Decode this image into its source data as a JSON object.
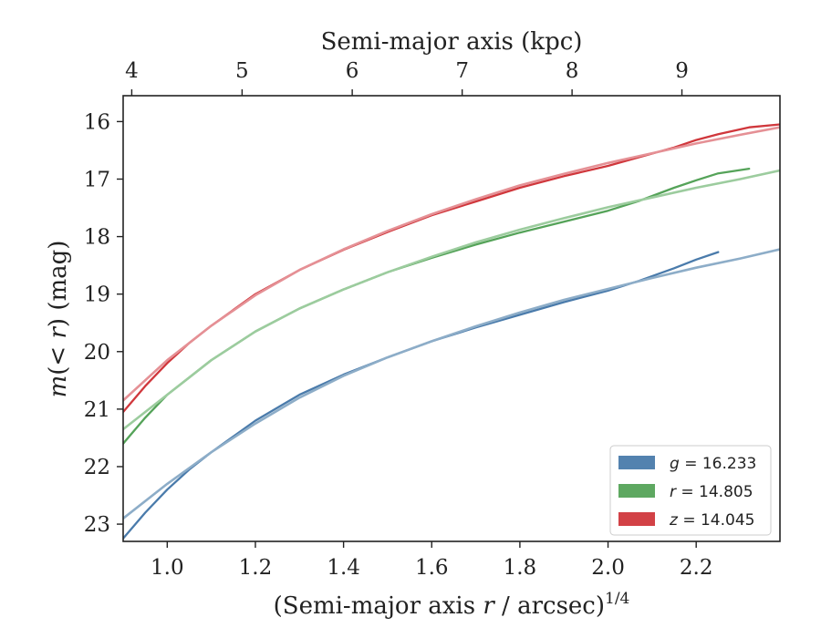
{
  "chart_data": {
    "type": "line",
    "xlabel": "(Semi-major axis r / arcsec)^1/4",
    "xlabel_parts": {
      "pre": "(Semi-major axis ",
      "var": "r",
      "post": " / arcsec)",
      "sup": "1/4"
    },
    "x2label": "Semi-major axis (kpc)",
    "ylabel": "m(< r) (mag)",
    "ylabel_parts": {
      "var": "m",
      "mid": "(< ",
      "var2": "r",
      "post": ") (mag)"
    },
    "xlim": [
      0.9,
      2.39
    ],
    "ylim": [
      23.3,
      15.55
    ],
    "y_inverted": true,
    "x_ticks": [
      1.0,
      1.2,
      1.4,
      1.6,
      1.8,
      2.0,
      2.2
    ],
    "x_tick_labels": [
      "1.0",
      "1.2",
      "1.4",
      "1.6",
      "1.8",
      "2.0",
      "2.2"
    ],
    "y_ticks": [
      16,
      17,
      18,
      19,
      20,
      21,
      22,
      23
    ],
    "y_tick_labels": [
      "16",
      "17",
      "18",
      "19",
      "20",
      "21",
      "22",
      "23"
    ],
    "x2_ticks": [
      {
        "label": "4",
        "x": 0.9195
      },
      {
        "label": "5",
        "x": 1.1698
      },
      {
        "label": "6",
        "x": 1.4197
      },
      {
        "label": "7",
        "x": 1.6691
      },
      {
        "label": "8",
        "x": 1.9184
      },
      {
        "label": "9",
        "x": 2.1676
      }
    ],
    "legend_position": "lower-right",
    "legend": [
      {
        "band": "g",
        "value": "16.233",
        "color": "#4a7bab"
      },
      {
        "band": "r",
        "value": "14.805",
        "color": "#55a359"
      },
      {
        "band": "z",
        "value": "14.045",
        "color": "#d0373c"
      }
    ],
    "series": [
      {
        "band": "g",
        "kind": "data",
        "color": "#4a7bab",
        "x": [
          0.9,
          0.95,
          1.0,
          1.05,
          1.1,
          1.2,
          1.3,
          1.4,
          1.5,
          1.6,
          1.7,
          1.8,
          1.9,
          2.0,
          2.07,
          2.15,
          2.2,
          2.25
        ],
        "y": [
          23.25,
          22.8,
          22.4,
          22.05,
          21.75,
          21.2,
          20.75,
          20.4,
          20.1,
          19.82,
          19.58,
          19.36,
          19.14,
          18.94,
          18.77,
          18.55,
          18.4,
          18.27
        ]
      },
      {
        "band": "g",
        "kind": "model",
        "color": "#8dadc8",
        "x": [
          0.9,
          1.0,
          1.1,
          1.2,
          1.3,
          1.4,
          1.5,
          1.6,
          1.7,
          1.8,
          1.9,
          2.0,
          2.1,
          2.2,
          2.3,
          2.39
        ],
        "y": [
          22.9,
          22.3,
          21.75,
          21.25,
          20.8,
          20.42,
          20.1,
          19.82,
          19.56,
          19.32,
          19.1,
          18.91,
          18.72,
          18.54,
          18.38,
          18.22
        ]
      },
      {
        "band": "r",
        "kind": "data",
        "color": "#55a359",
        "x": [
          0.9,
          0.95,
          1.0,
          1.05,
          1.1,
          1.2,
          1.3,
          1.4,
          1.5,
          1.6,
          1.7,
          1.8,
          1.9,
          2.0,
          2.07,
          2.15,
          2.2,
          2.25,
          2.32
        ],
        "y": [
          21.6,
          21.15,
          20.75,
          20.45,
          20.15,
          19.65,
          19.25,
          18.92,
          18.62,
          18.37,
          18.14,
          17.93,
          17.74,
          17.55,
          17.38,
          17.15,
          17.02,
          16.9,
          16.82
        ]
      },
      {
        "band": "r",
        "kind": "model",
        "color": "#9ccc9e",
        "x": [
          0.9,
          1.0,
          1.1,
          1.2,
          1.3,
          1.4,
          1.5,
          1.6,
          1.7,
          1.8,
          1.9,
          2.0,
          2.1,
          2.2,
          2.3,
          2.39
        ],
        "y": [
          21.35,
          20.75,
          20.15,
          19.65,
          19.25,
          18.92,
          18.62,
          18.35,
          18.1,
          17.88,
          17.68,
          17.49,
          17.32,
          17.15,
          17.0,
          16.85
        ]
      },
      {
        "band": "z",
        "kind": "data",
        "color": "#d0373c",
        "x": [
          0.9,
          0.95,
          1.0,
          1.05,
          1.1,
          1.2,
          1.3,
          1.4,
          1.5,
          1.6,
          1.7,
          1.8,
          1.9,
          2.0,
          2.07,
          2.15,
          2.2,
          2.25,
          2.32,
          2.39
        ],
        "y": [
          21.05,
          20.6,
          20.2,
          19.85,
          19.55,
          19.0,
          18.58,
          18.23,
          17.92,
          17.63,
          17.39,
          17.15,
          16.95,
          16.77,
          16.62,
          16.45,
          16.32,
          16.22,
          16.1,
          16.05
        ]
      },
      {
        "band": "z",
        "kind": "model",
        "color": "#e59095",
        "x": [
          0.9,
          1.0,
          1.1,
          1.2,
          1.3,
          1.4,
          1.5,
          1.6,
          1.7,
          1.8,
          1.9,
          2.0,
          2.1,
          2.2,
          2.3,
          2.39
        ],
        "y": [
          20.85,
          20.15,
          19.55,
          19.02,
          18.58,
          18.22,
          17.9,
          17.61,
          17.35,
          17.11,
          16.91,
          16.72,
          16.55,
          16.38,
          16.23,
          16.1
        ]
      }
    ]
  }
}
